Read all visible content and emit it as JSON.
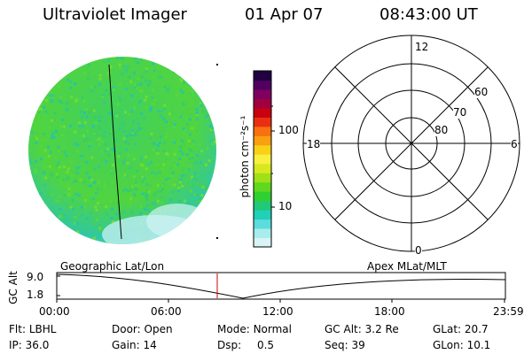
{
  "header": {
    "instrument": "Ultraviolet Imager",
    "date": "01 Apr 07",
    "time": "08:43:00 UT"
  },
  "colorbar": {
    "unit_label": "photon cm⁻²s⁻¹",
    "ticks": [
      "100",
      "10"
    ],
    "colors": [
      "#d8f4f4",
      "#a8ecec",
      "#5cdcdc",
      "#20d0b8",
      "#20c878",
      "#30d030",
      "#60d820",
      "#a0e018",
      "#d8e820",
      "#f8f040",
      "#f8d018",
      "#f8a010",
      "#f87010",
      "#e83010",
      "#c80010",
      "#a00040",
      "#800060",
      "#500060",
      "#200040"
    ]
  },
  "polar": {
    "labels": {
      "top": "12",
      "bottom": "0",
      "left": "18",
      "right": "6"
    },
    "ring_labels": [
      "60",
      "70",
      "80"
    ]
  },
  "altplot": {
    "axis_label": "GC Alt",
    "y_ticks": [
      "9.0",
      "1.8"
    ],
    "left_title": "Geographic Lat/Lon",
    "right_title": "Apex  MLat/MLT",
    "x_ticks": [
      "00:00",
      "06:00",
      "12:00",
      "18:00",
      "23:59"
    ],
    "marker_color": "#cc0000"
  },
  "info": {
    "row1": [
      {
        "label": "Flt:",
        "value": "LBHL"
      },
      {
        "label": "Door:",
        "value": "Open"
      },
      {
        "label": "Mode:",
        "value": "Normal"
      },
      {
        "label": "GC Alt:",
        "value": "3.2 Re"
      },
      {
        "label": "GLat:",
        "value": "20.7"
      }
    ],
    "row2": [
      {
        "label": "IP:",
        "value": "36.0"
      },
      {
        "label": "Gain:",
        "value": "14"
      },
      {
        "label": "Dsp:",
        "value": "0.5"
      },
      {
        "label": "Seq:",
        "value": "39"
      },
      {
        "label": "GLon:",
        "value": "10.1"
      }
    ]
  }
}
